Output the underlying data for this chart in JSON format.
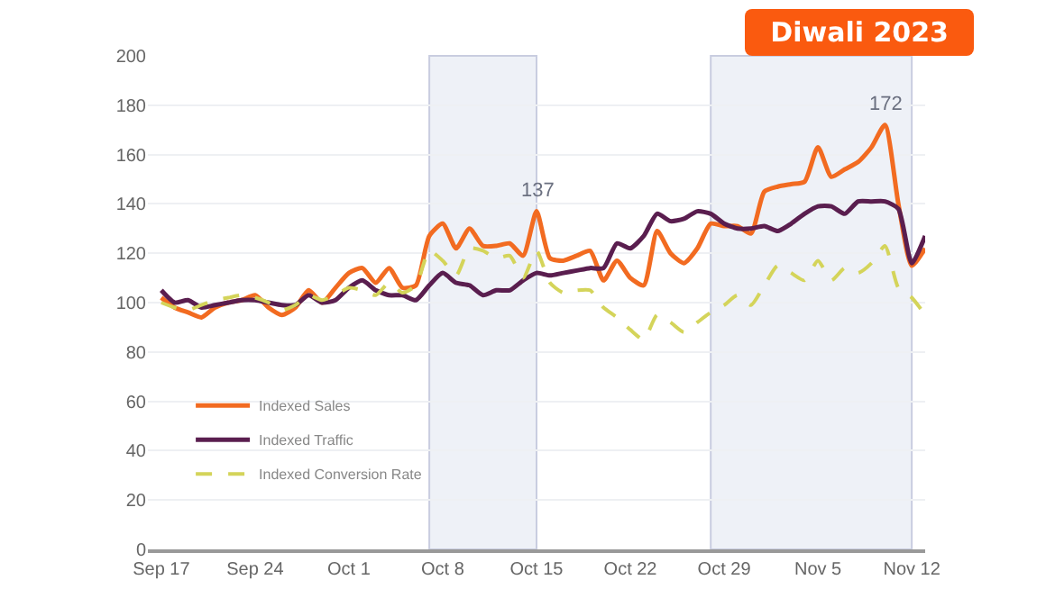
{
  "chart_data": {
    "type": "line",
    "title": "Diwali 2023",
    "x": [
      "2023-09-17",
      "2023-09-18",
      "2023-09-19",
      "2023-09-20",
      "2023-09-21",
      "2023-09-22",
      "2023-09-23",
      "2023-09-24",
      "2023-09-25",
      "2023-09-26",
      "2023-09-27",
      "2023-09-28",
      "2023-09-29",
      "2023-09-30",
      "2023-10-01",
      "2023-10-02",
      "2023-10-03",
      "2023-10-04",
      "2023-10-05",
      "2023-10-06",
      "2023-10-07",
      "2023-10-08",
      "2023-10-09",
      "2023-10-10",
      "2023-10-11",
      "2023-10-12",
      "2023-10-13",
      "2023-10-14",
      "2023-10-15",
      "2023-10-16",
      "2023-10-17",
      "2023-10-18",
      "2023-10-19",
      "2023-10-20",
      "2023-10-21",
      "2023-10-22",
      "2023-10-23",
      "2023-10-24",
      "2023-10-25",
      "2023-10-26",
      "2023-10-27",
      "2023-10-28",
      "2023-10-29",
      "2023-10-30",
      "2023-10-31",
      "2023-11-01",
      "2023-11-02",
      "2023-11-03",
      "2023-11-04",
      "2023-11-05",
      "2023-11-06",
      "2023-11-07",
      "2023-11-08",
      "2023-11-09",
      "2023-11-10",
      "2023-11-11",
      "2023-11-12",
      "2023-11-13"
    ],
    "series": [
      {
        "name": "Indexed Sales",
        "color": "#f26b21",
        "line_style": "solid",
        "values": [
          102,
          98,
          96,
          94,
          98,
          100,
          101,
          103,
          98,
          95,
          98,
          105,
          100,
          106,
          112,
          114,
          108,
          114,
          106,
          107,
          127,
          132,
          122,
          130,
          123,
          123,
          124,
          119,
          137,
          118,
          117,
          119,
          121,
          109,
          117,
          110,
          107,
          129,
          120,
          116,
          122,
          132,
          131,
          131,
          128,
          145,
          147,
          148,
          149,
          163,
          151,
          154,
          157,
          163,
          172,
          140,
          115,
          122
        ]
      },
      {
        "name": "Indexed Traffic",
        "color": "#5a1e4f",
        "line_style": "solid",
        "values": [
          105,
          100,
          101,
          98,
          99,
          100,
          101,
          101,
          100,
          99,
          99,
          103,
          100,
          101,
          106,
          109,
          105,
          103,
          103,
          101,
          107,
          112,
          108,
          107,
          103,
          105,
          105,
          109,
          112,
          111,
          112,
          113,
          114,
          114,
          124,
          122,
          127,
          136,
          133,
          134,
          137,
          136,
          132,
          130,
          130,
          131,
          129,
          132,
          136,
          139,
          139,
          136,
          141,
          141,
          141,
          138,
          116,
          127
        ]
      },
      {
        "name": "Indexed Conversion Rate",
        "color": "#d4d45a",
        "line_style": "dashed",
        "values": [
          100,
          98,
          97,
          99,
          101,
          102,
          103,
          102,
          100,
          97,
          99,
          103,
          101,
          103,
          106,
          105,
          103,
          108,
          104,
          107,
          121,
          117,
          111,
          122,
          121,
          118,
          119,
          110,
          121,
          108,
          104,
          105,
          105,
          98,
          94,
          89,
          85,
          95,
          92,
          88,
          92,
          96,
          99,
          103,
          99,
          107,
          115,
          112,
          109,
          117,
          109,
          114,
          112,
          116,
          123,
          106,
          102,
          95
        ]
      }
    ],
    "xlim": [
      "2023-09-16",
      "2023-11-13"
    ],
    "xticks": [
      {
        "value": "2023-09-17",
        "label": "Sep 17"
      },
      {
        "value": "2023-09-24",
        "label": "Sep 24"
      },
      {
        "value": "2023-10-01",
        "label": "Oct 1"
      },
      {
        "value": "2023-10-08",
        "label": "Oct 8"
      },
      {
        "value": "2023-10-15",
        "label": "Oct 15"
      },
      {
        "value": "2023-10-22",
        "label": "Oct 22"
      },
      {
        "value": "2023-10-29",
        "label": "Oct 29"
      },
      {
        "value": "2023-11-05",
        "label": "Nov 5"
      },
      {
        "value": "2023-11-12",
        "label": "Nov 12"
      }
    ],
    "ylim": [
      0,
      200
    ],
    "yticks": [
      0,
      20,
      40,
      60,
      80,
      100,
      120,
      140,
      160,
      180,
      200
    ],
    "grid": "y",
    "legend": "bottom left",
    "marker": "none",
    "bands": [
      {
        "axis": "x",
        "from": "2023-10-07",
        "to": "2023-10-15",
        "color": "#eef1f7"
      },
      {
        "axis": "x",
        "from": "2023-10-28",
        "to": "2023-11-12",
        "color": "#eef1f7"
      }
    ],
    "annotations": [
      {
        "text": "137",
        "x": "2023-10-15",
        "y": 137
      },
      {
        "text": "172",
        "x": "2023-11-10",
        "y": 172
      }
    ]
  }
}
